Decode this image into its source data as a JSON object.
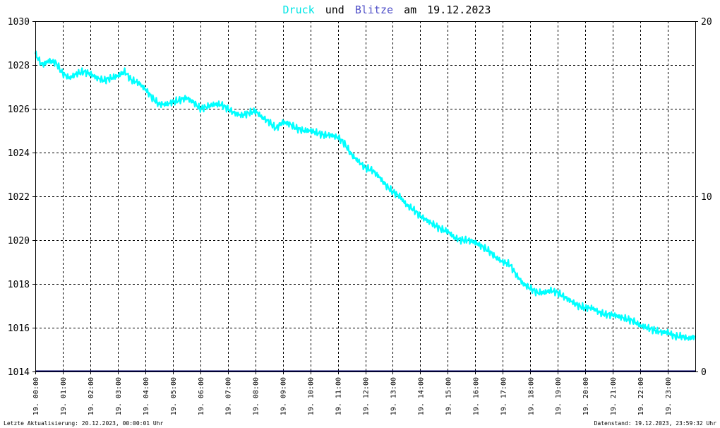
{
  "title": {
    "series1": "Druck",
    "joiner1": "und",
    "series2": "Blitze",
    "joiner2": "am",
    "date": "19.12.2023"
  },
  "footer": {
    "left": "Letzte Aktualisierung: 20.12.2023, 00:00:01 Uhr",
    "right": "Datenstand: 19.12.2023, 23:59:32 Uhr"
  },
  "colors": {
    "druck": "#00ffff",
    "blitze": "#3333aa",
    "baseline": "#000066",
    "grid": "#000000",
    "background": "#ffffff"
  },
  "chart_data": {
    "type": "line",
    "title": "Druck und Blitze am 19.12.2023",
    "x_unit": "hour",
    "xlim": [
      0,
      24
    ],
    "x_tick_labels": [
      "19. 00:00",
      "19. 01:00",
      "19. 02:00",
      "19. 03:00",
      "19. 04:00",
      "19. 05:00",
      "19. 06:00",
      "19. 07:00",
      "19. 08:00",
      "19. 09:00",
      "19. 10:00",
      "19. 11:00",
      "19. 12:00",
      "19. 13:00",
      "19. 14:00",
      "19. 15:00",
      "19. 16:00",
      "19. 17:00",
      "19. 18:00",
      "19. 19:00",
      "19. 20:00",
      "19. 21:00",
      "19. 22:00",
      "19. 23:00"
    ],
    "y_left": {
      "ylim": [
        1014,
        1030
      ],
      "ticks": [
        "1014",
        "1016",
        "1018",
        "1020",
        "1022",
        "1024",
        "1026",
        "1028",
        "1030"
      ]
    },
    "y_right": {
      "ylim": [
        0,
        20
      ],
      "ticks": [
        "0",
        "10",
        "20"
      ]
    },
    "grid": true,
    "series": [
      {
        "name": "Druck",
        "axis": "left",
        "x": [
          0,
          0.25,
          0.5,
          0.75,
          1.0,
          1.25,
          1.5,
          1.75,
          2.0,
          2.25,
          2.5,
          2.75,
          3.0,
          3.25,
          3.5,
          3.75,
          4.0,
          4.25,
          4.5,
          4.75,
          5.0,
          5.25,
          5.5,
          5.75,
          6.0,
          6.25,
          6.5,
          6.75,
          7.0,
          7.25,
          7.5,
          7.75,
          8.0,
          8.25,
          8.5,
          8.75,
          9.0,
          9.25,
          9.5,
          9.75,
          10.0,
          10.25,
          10.5,
          10.75,
          11.0,
          11.25,
          11.5,
          11.75,
          12.0,
          12.25,
          12.5,
          12.75,
          13.0,
          13.25,
          13.5,
          13.75,
          14.0,
          14.25,
          14.5,
          14.75,
          15.0,
          15.25,
          15.5,
          15.75,
          16.0,
          16.25,
          16.5,
          16.75,
          17.0,
          17.25,
          17.5,
          17.75,
          18.0,
          18.25,
          18.5,
          18.75,
          19.0,
          19.25,
          19.5,
          19.75,
          20.0,
          20.25,
          20.5,
          20.75,
          21.0,
          21.25,
          21.5,
          21.75,
          22.0,
          22.25,
          22.5,
          22.75,
          23.0,
          23.25,
          23.5,
          23.75,
          23.99
        ],
        "values": [
          1028.5,
          1028.0,
          1028.2,
          1028.1,
          1027.6,
          1027.4,
          1027.6,
          1027.7,
          1027.6,
          1027.4,
          1027.3,
          1027.4,
          1027.5,
          1027.7,
          1027.3,
          1027.2,
          1026.9,
          1026.5,
          1026.2,
          1026.2,
          1026.3,
          1026.4,
          1026.5,
          1026.3,
          1026.0,
          1026.1,
          1026.2,
          1026.2,
          1026.0,
          1025.8,
          1025.7,
          1025.8,
          1025.9,
          1025.6,
          1025.4,
          1025.1,
          1025.4,
          1025.3,
          1025.1,
          1025.0,
          1025.0,
          1024.9,
          1024.8,
          1024.8,
          1024.7,
          1024.4,
          1023.9,
          1023.6,
          1023.3,
          1023.2,
          1022.9,
          1022.5,
          1022.2,
          1022.0,
          1021.6,
          1021.4,
          1021.1,
          1020.9,
          1020.7,
          1020.5,
          1020.4,
          1020.1,
          1020.0,
          1020.0,
          1019.9,
          1019.7,
          1019.5,
          1019.2,
          1019.0,
          1018.9,
          1018.4,
          1018.0,
          1017.8,
          1017.6,
          1017.6,
          1017.7,
          1017.6,
          1017.4,
          1017.2,
          1017.0,
          1016.9,
          1016.9,
          1016.7,
          1016.6,
          1016.6,
          1016.5,
          1016.4,
          1016.3,
          1016.1,
          1016.0,
          1015.9,
          1015.8,
          1015.8,
          1015.6,
          1015.6,
          1015.5,
          1015.6
        ]
      },
      {
        "name": "Blitze",
        "axis": "right",
        "x": [
          0,
          24
        ],
        "values": [
          0,
          0
        ]
      }
    ]
  }
}
